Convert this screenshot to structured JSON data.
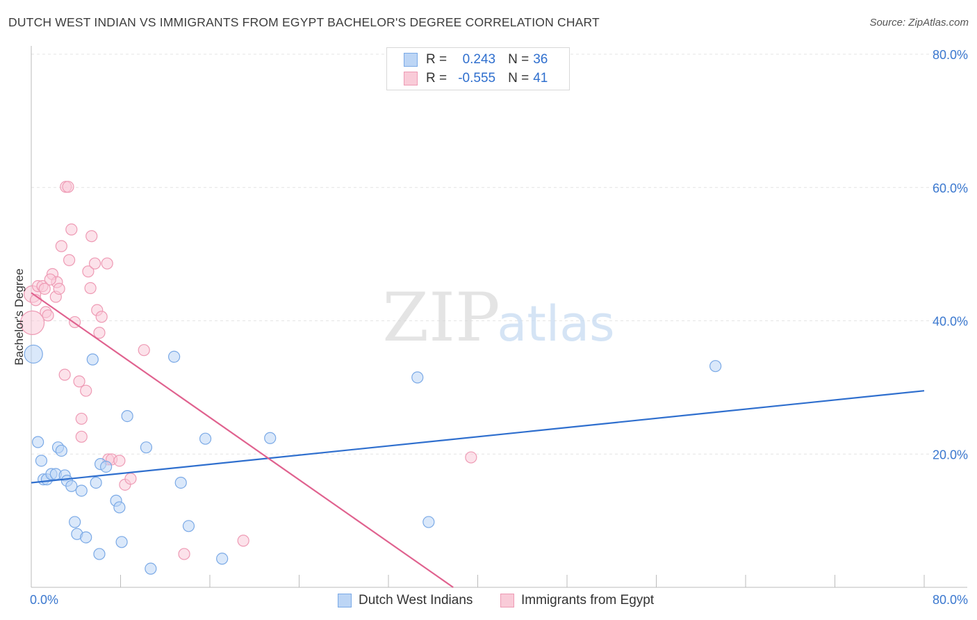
{
  "title": "DUTCH WEST INDIAN VS IMMIGRANTS FROM EGYPT BACHELOR'S DEGREE CORRELATION CHART",
  "source": "Source: ZipAtlas.com",
  "watermark": {
    "zip": "ZIP",
    "atlas": "atlas"
  },
  "legend": {
    "rows": [
      {
        "r_label": "R =",
        "r_value": "0.243",
        "n_label": "N =",
        "n_value": "36"
      },
      {
        "r_label": "R =",
        "r_value": "-0.555",
        "n_label": "N =",
        "n_value": "41"
      }
    ]
  },
  "colors": {
    "blue": "#2f6fce",
    "blue_fill": "#bcd5f5",
    "blue_stroke": "#7aa9e6",
    "pink": "#e0628f",
    "pink_fill": "#f9cbd8",
    "pink_stroke": "#ee9ab4",
    "tick_label": "#3b78cf",
    "grid": "#e4e4e4"
  },
  "chart_data": {
    "type": "scatter",
    "title": "DUTCH WEST INDIAN VS IMMIGRANTS FROM EGYPT BACHELOR'S DEGREE CORRELATION CHART",
    "xlabel": "",
    "ylabel": "Bachelor's Degree",
    "xlim": [
      0,
      80
    ],
    "ylim": [
      0,
      80
    ],
    "x_tick_labels": [
      "0.0%",
      "80.0%"
    ],
    "y_tick_labels": [
      "20.0%",
      "40.0%",
      "60.0%",
      "80.0%"
    ],
    "y_ticks": [
      20,
      40,
      60,
      80
    ],
    "legend_position": "bottom-center",
    "series": [
      {
        "name": "Dutch West Indians",
        "color": "blue",
        "trend": {
          "x": [
            0,
            80
          ],
          "y": [
            15.7,
            29.5
          ]
        },
        "points": [
          {
            "x": 0.2,
            "y": 35.0,
            "s": 13
          },
          {
            "x": 0.6,
            "y": 21.8
          },
          {
            "x": 0.9,
            "y": 19.0
          },
          {
            "x": 1.1,
            "y": 16.2
          },
          {
            "x": 1.4,
            "y": 16.2
          },
          {
            "x": 1.8,
            "y": 17.0
          },
          {
            "x": 2.2,
            "y": 17.0
          },
          {
            "x": 2.4,
            "y": 21.0
          },
          {
            "x": 2.7,
            "y": 20.5
          },
          {
            "x": 3.0,
            "y": 16.8
          },
          {
            "x": 3.2,
            "y": 16.0
          },
          {
            "x": 3.6,
            "y": 15.2
          },
          {
            "x": 3.9,
            "y": 9.8
          },
          {
            "x": 4.1,
            "y": 8.0
          },
          {
            "x": 4.5,
            "y": 14.5
          },
          {
            "x": 4.9,
            "y": 7.5
          },
          {
            "x": 5.5,
            "y": 34.2
          },
          {
            "x": 5.8,
            "y": 15.7
          },
          {
            "x": 6.1,
            "y": 5.0
          },
          {
            "x": 6.2,
            "y": 18.5
          },
          {
            "x": 6.7,
            "y": 18.1
          },
          {
            "x": 7.6,
            "y": 13.0
          },
          {
            "x": 7.9,
            "y": 12.0
          },
          {
            "x": 8.1,
            "y": 6.8
          },
          {
            "x": 8.6,
            "y": 25.7
          },
          {
            "x": 10.3,
            "y": 21.0
          },
          {
            "x": 10.7,
            "y": 2.8
          },
          {
            "x": 12.8,
            "y": 34.6
          },
          {
            "x": 13.4,
            "y": 15.7
          },
          {
            "x": 14.1,
            "y": 9.2
          },
          {
            "x": 15.6,
            "y": 22.3
          },
          {
            "x": 17.1,
            "y": 4.3
          },
          {
            "x": 21.4,
            "y": 22.4
          },
          {
            "x": 34.6,
            "y": 31.5
          },
          {
            "x": 35.6,
            "y": 9.8
          },
          {
            "x": 61.3,
            "y": 33.2
          }
        ]
      },
      {
        "name": "Immigrants from Egypt",
        "color": "pink",
        "trend": {
          "x": [
            0,
            37.8
          ],
          "y": [
            44.2,
            0
          ]
        },
        "points": [
          {
            "x": 0.1,
            "y": 39.7,
            "s": 17
          },
          {
            "x": 0.1,
            "y": 44.0,
            "s": 12
          },
          {
            "x": 0.6,
            "y": 45.2
          },
          {
            "x": 1.0,
            "y": 45.2
          },
          {
            "x": 1.2,
            "y": 44.8
          },
          {
            "x": 1.3,
            "y": 41.3
          },
          {
            "x": 1.5,
            "y": 40.8
          },
          {
            "x": 1.9,
            "y": 47.0
          },
          {
            "x": 2.2,
            "y": 43.6
          },
          {
            "x": 2.3,
            "y": 45.8
          },
          {
            "x": 2.5,
            "y": 44.8
          },
          {
            "x": 2.7,
            "y": 51.2
          },
          {
            "x": 3.0,
            "y": 31.9
          },
          {
            "x": 3.1,
            "y": 60.1
          },
          {
            "x": 3.3,
            "y": 60.1
          },
          {
            "x": 3.4,
            "y": 49.1
          },
          {
            "x": 3.6,
            "y": 53.7
          },
          {
            "x": 3.9,
            "y": 39.8
          },
          {
            "x": 4.3,
            "y": 30.9
          },
          {
            "x": 4.5,
            "y": 25.3
          },
          {
            "x": 4.5,
            "y": 22.6
          },
          {
            "x": 4.9,
            "y": 29.5
          },
          {
            "x": 5.1,
            "y": 47.4
          },
          {
            "x": 5.3,
            "y": 44.9
          },
          {
            "x": 5.4,
            "y": 52.7
          },
          {
            "x": 5.7,
            "y": 48.6
          },
          {
            "x": 5.9,
            "y": 41.6
          },
          {
            "x": 6.1,
            "y": 38.2
          },
          {
            "x": 6.3,
            "y": 40.6
          },
          {
            "x": 6.8,
            "y": 48.6
          },
          {
            "x": 6.9,
            "y": 19.2
          },
          {
            "x": 7.2,
            "y": 19.2
          },
          {
            "x": 7.9,
            "y": 19.0
          },
          {
            "x": 8.4,
            "y": 15.4
          },
          {
            "x": 8.9,
            "y": 16.3
          },
          {
            "x": 10.1,
            "y": 35.6
          },
          {
            "x": 13.7,
            "y": 5.0
          },
          {
            "x": 19.0,
            "y": 7.0
          },
          {
            "x": 39.4,
            "y": 19.5
          },
          {
            "x": 0.4,
            "y": 43.1
          },
          {
            "x": 1.7,
            "y": 46.2
          }
        ]
      }
    ]
  }
}
